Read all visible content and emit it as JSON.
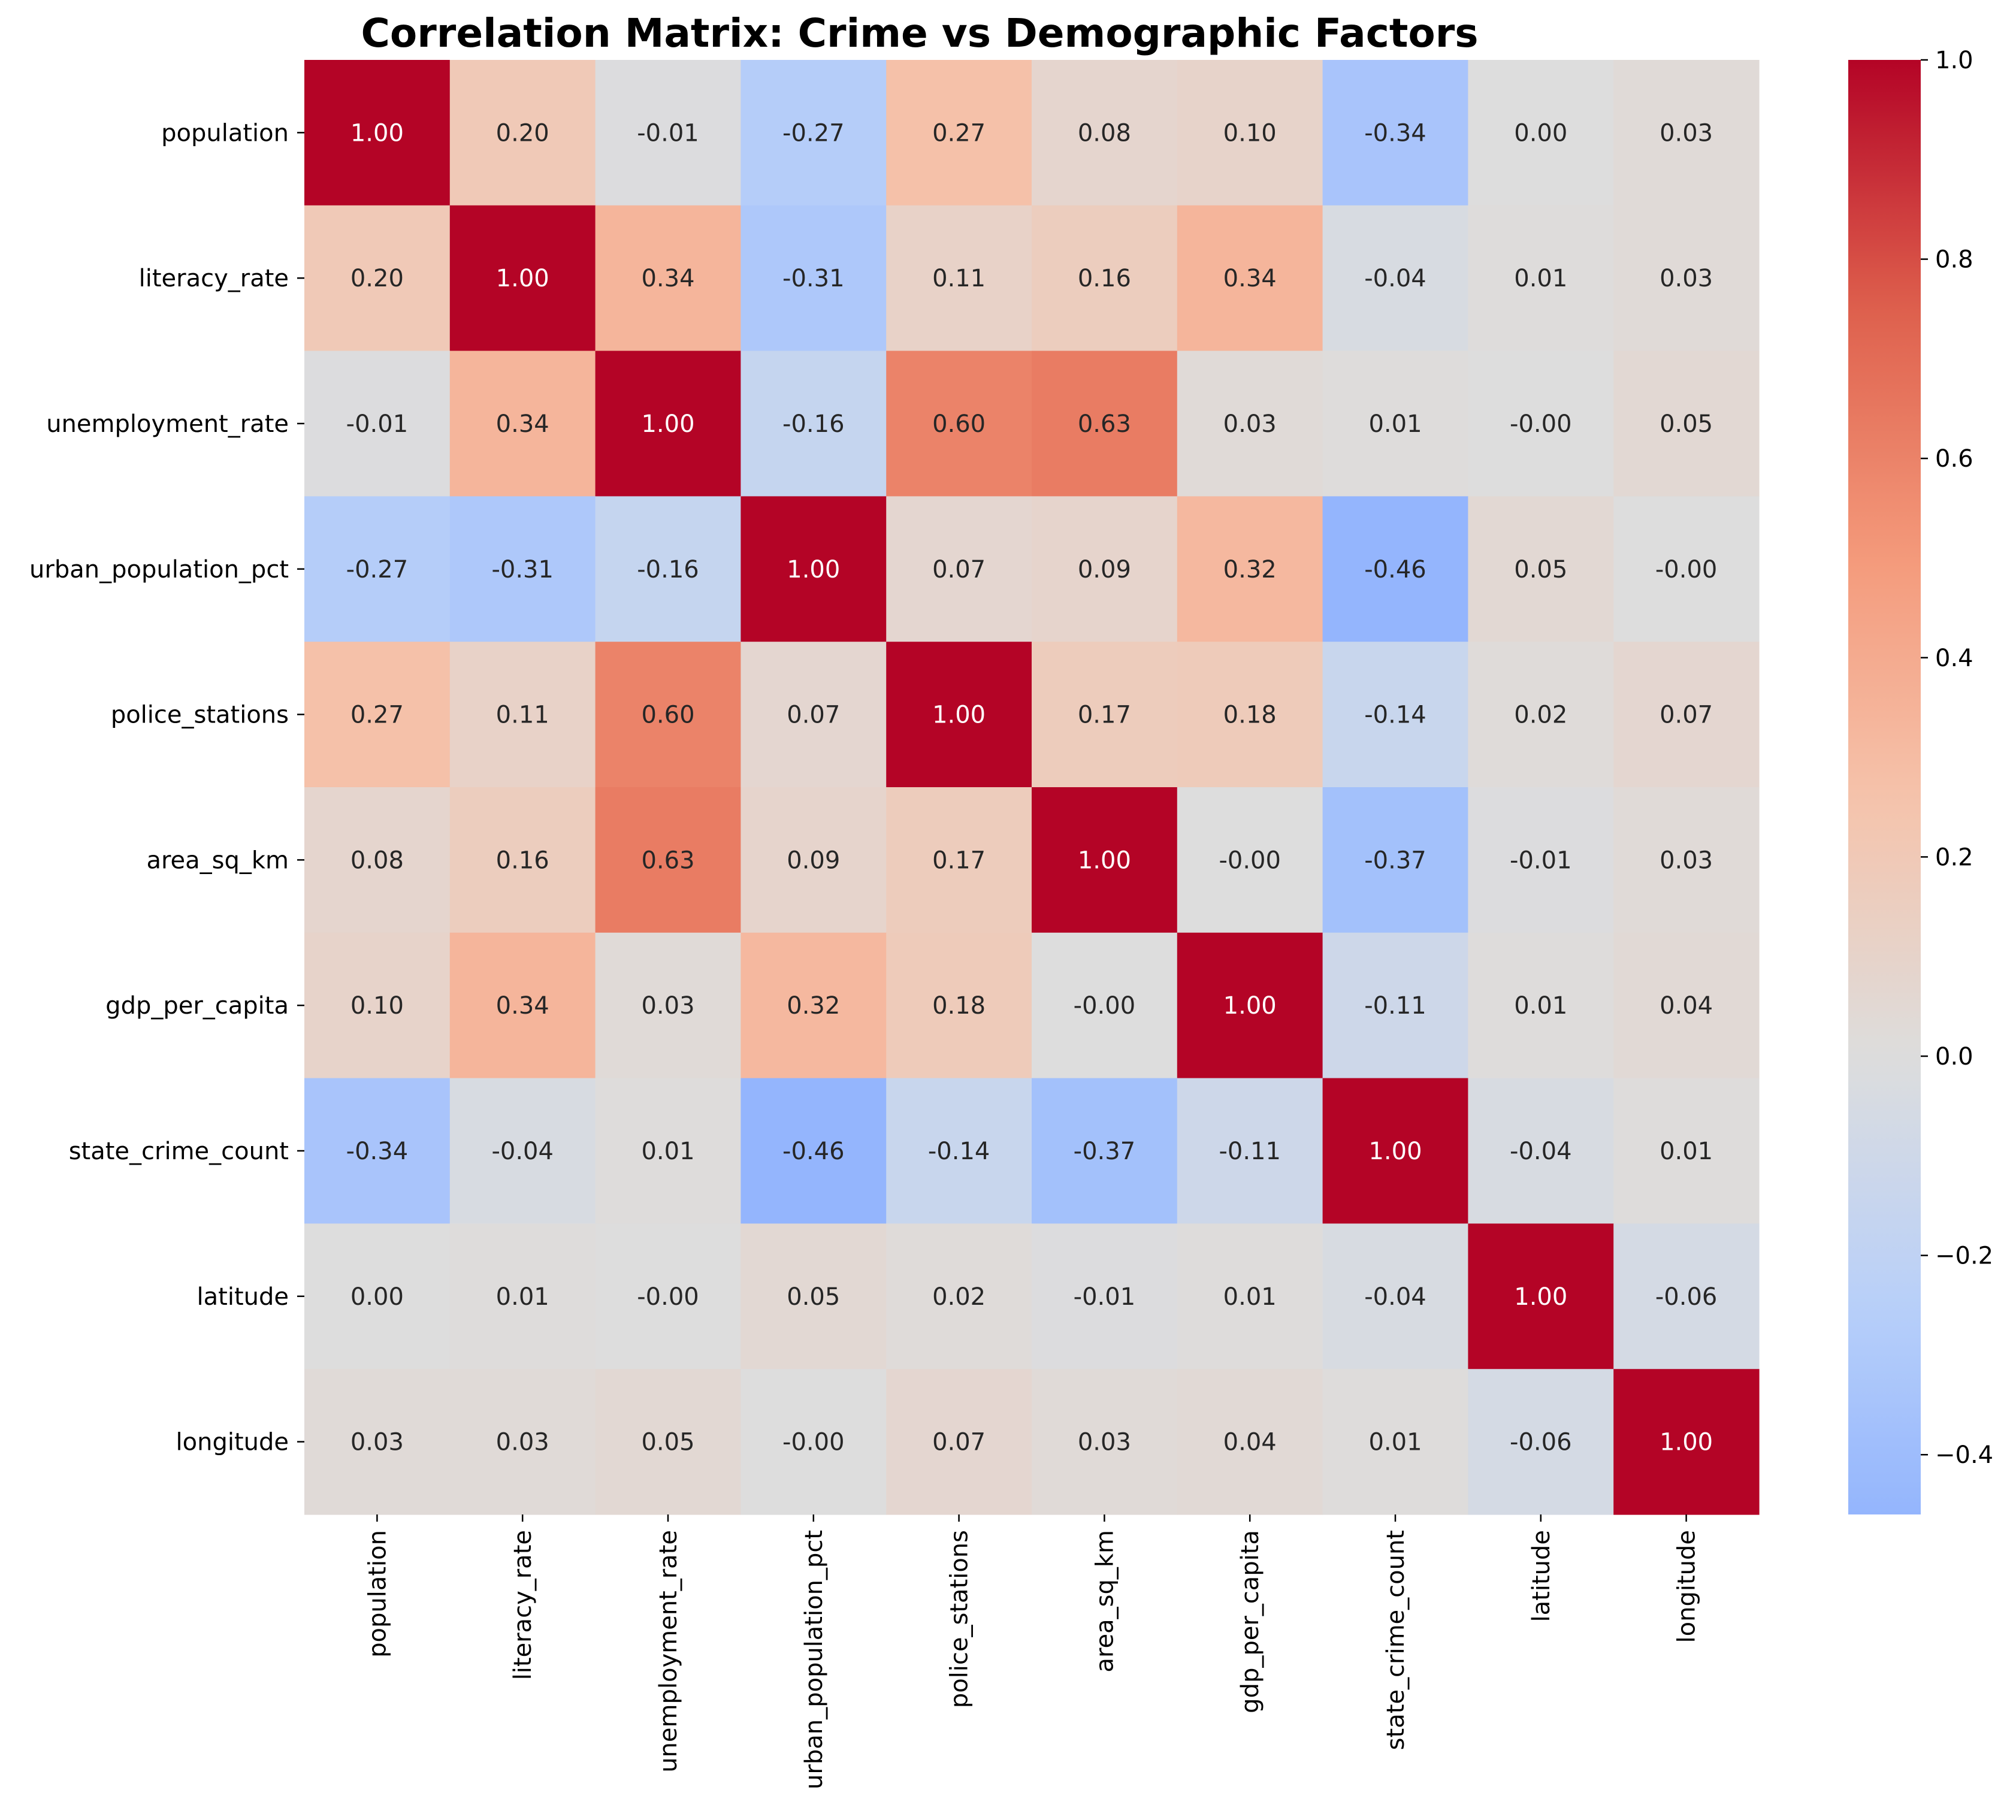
{
  "chart_data": {
    "type": "heatmap",
    "title": "Correlation Matrix: Crime vs Demographic Factors",
    "rows": [
      "population",
      "literacy_rate",
      "unemployment_rate",
      "urban_population_pct",
      "police_stations",
      "area_sq_km",
      "gdp_per_capita",
      "state_crime_count",
      "latitude",
      "longitude"
    ],
    "columns": [
      "population",
      "literacy_rate",
      "unemployment_rate",
      "urban_population_pct",
      "police_stations",
      "area_sq_km",
      "gdp_per_capita",
      "state_crime_count",
      "latitude",
      "longitude"
    ],
    "values": [
      [
        1.0,
        0.2,
        -0.01,
        -0.27,
        0.27,
        0.08,
        0.1,
        -0.34,
        0.0,
        0.03
      ],
      [
        0.2,
        1.0,
        0.34,
        -0.31,
        0.11,
        0.16,
        0.34,
        -0.04,
        0.01,
        0.03
      ],
      [
        -0.01,
        0.34,
        1.0,
        -0.16,
        0.6,
        0.63,
        0.03,
        0.01,
        -0.0,
        0.05
      ],
      [
        -0.27,
        -0.31,
        -0.16,
        1.0,
        0.07,
        0.09,
        0.32,
        -0.46,
        0.05,
        -0.0
      ],
      [
        0.27,
        0.11,
        0.6,
        0.07,
        1.0,
        0.17,
        0.18,
        -0.14,
        0.02,
        0.07
      ],
      [
        0.08,
        0.16,
        0.63,
        0.09,
        0.17,
        1.0,
        -0.0,
        -0.37,
        -0.01,
        0.03
      ],
      [
        0.1,
        0.34,
        0.03,
        0.32,
        0.18,
        -0.0,
        1.0,
        -0.11,
        0.01,
        0.04
      ],
      [
        -0.34,
        -0.04,
        0.01,
        -0.46,
        -0.14,
        -0.37,
        -0.11,
        1.0,
        -0.04,
        0.01
      ],
      [
        0.0,
        0.01,
        -0.0,
        0.05,
        0.02,
        -0.01,
        0.01,
        -0.04,
        1.0,
        -0.06
      ],
      [
        0.03,
        0.03,
        0.05,
        -0.0,
        0.07,
        0.03,
        0.04,
        0.01,
        -0.06,
        1.0
      ]
    ],
    "annotation_format": "0.00",
    "colormap": "coolwarm",
    "color_range": [
      -0.46,
      1.0
    ],
    "center": 0,
    "colorbar": {
      "ticks": [
        1.0,
        0.8,
        0.6,
        0.4,
        0.2,
        0.0,
        -0.2,
        -0.4
      ],
      "tick_labels": [
        "1.0",
        "0.8",
        "0.6",
        "0.4",
        "0.2",
        "0.0",
        "−0.2",
        "−0.4"
      ]
    },
    "grid": false,
    "legend": "colorbar-right"
  }
}
